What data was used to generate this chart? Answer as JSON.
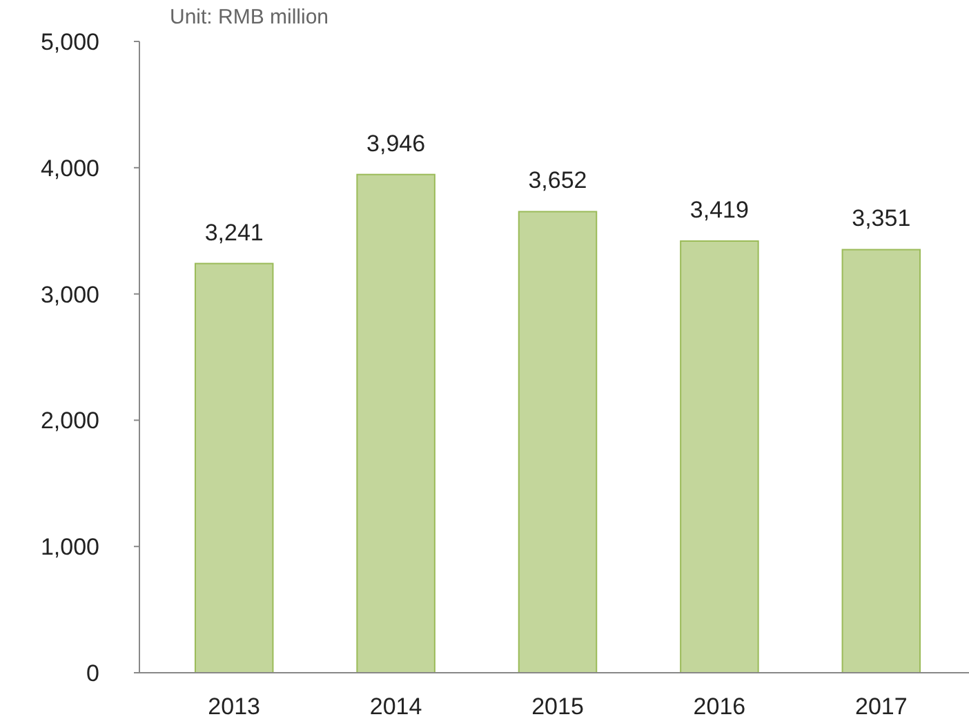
{
  "chart_data": {
    "type": "bar",
    "categories": [
      "2013",
      "2014",
      "2015",
      "2016",
      "2017"
    ],
    "values": [
      3241,
      3946,
      3652,
      3419,
      3351
    ],
    "color": "#c3d69b",
    "ylim": [
      0,
      5000
    ],
    "yticks": [
      {
        "value": 0,
        "label": "0"
      },
      {
        "value": 1000,
        "label": "1,000"
      },
      {
        "value": 2000,
        "label": "2,000"
      },
      {
        "value": 3000,
        "label": "3,000"
      },
      {
        "value": 4000,
        "label": "4,000"
      },
      {
        "value": 5000,
        "label": "5,000"
      }
    ],
    "value_labels": [
      "3,241",
      "3,946",
      "3,652",
      "3,419",
      "3,351"
    ],
    "grid": false,
    "annotations": [
      "Unit: RMB million"
    ]
  }
}
